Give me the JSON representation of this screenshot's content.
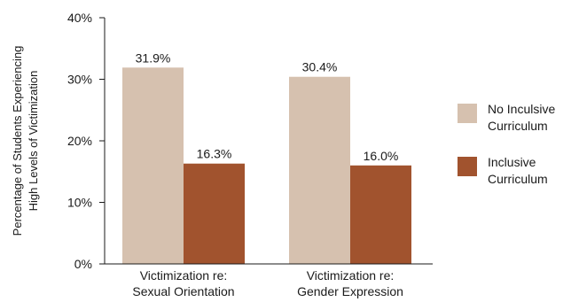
{
  "chart_data": {
    "type": "bar",
    "title": "",
    "xlabel": "",
    "ylabel": "Percentage of Students Experiencing High Levels of Victimization",
    "ylabel_lines": [
      "Percentage of Students Experiencing",
      "High Levels of Victimization"
    ],
    "ylim": [
      0,
      40
    ],
    "yticks": [
      0,
      10,
      20,
      30,
      40
    ],
    "ytick_labels": [
      "0%",
      "10%",
      "20%",
      "30%",
      "40%"
    ],
    "categories": [
      "Victimization re: Sexual Orientation",
      "Victimization re: Gender Expression"
    ],
    "category_lines": [
      [
        "Victimization re:",
        "Sexual Orientation"
      ],
      [
        "Victimization re:",
        "Gender Expression"
      ]
    ],
    "series": [
      {
        "name": "No Inculsive Curriculum",
        "values": [
          31.9,
          30.4
        ],
        "labels": [
          "31.9%",
          "30.4%"
        ],
        "color": "#d6c1af"
      },
      {
        "name": "Inclusive Curriculum",
        "values": [
          16.3,
          16.0
        ],
        "labels": [
          "16.3%",
          "16.0%"
        ],
        "color": "#a1532e"
      }
    ],
    "grid": false,
    "legend_position": "right"
  }
}
